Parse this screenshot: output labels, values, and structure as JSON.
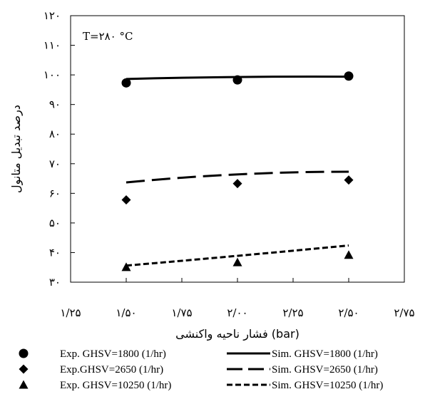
{
  "chart_data": {
    "type": "line",
    "xlabel": "فشار ناحیه واکنشی (bar)",
    "ylabel": "درصد تبدیل متانول",
    "annotation": "T=۲۸۰ °C",
    "xlim": [
      1.25,
      2.75
    ],
    "ylim": [
      30,
      120
    ],
    "x_ticks": [
      1.25,
      1.5,
      1.75,
      2.0,
      2.25,
      2.5,
      2.75
    ],
    "x_tick_labels": [
      "۱/۲۵",
      "۱/۵۰",
      "۱/۷۵",
      "۲/۰۰",
      "۲/۲۵",
      "۲/۵۰",
      "۲/۷۵"
    ],
    "y_ticks": [
      30,
      40,
      50,
      60,
      70,
      80,
      90,
      100,
      110,
      120
    ],
    "y_tick_labels": [
      "۳۰",
      "۴۰",
      "۵۰",
      "۶۰",
      "۷۰",
      "۸۰",
      "۹۰",
      "۱۰۰",
      "۱۱۰",
      "۱۲۰"
    ],
    "grid": false,
    "legend_position": "bottom",
    "series": [
      {
        "name": "Exp. GHSV=1800 (1/hr)",
        "kind": "markers",
        "marker": "circle",
        "x": [
          1.5,
          2.0,
          2.5
        ],
        "y": [
          97.3,
          98.3,
          99.6
        ]
      },
      {
        "name": "Exp.GHSV=2650 (1/hr)",
        "kind": "markers",
        "marker": "diamond",
        "x": [
          1.5,
          2.0,
          2.5
        ],
        "y": [
          57.8,
          63.3,
          64.5
        ]
      },
      {
        "name": "Exp. GHSV=10250 (1/hr)",
        "kind": "markers",
        "marker": "triangle",
        "x": [
          1.5,
          2.0,
          2.5
        ],
        "y": [
          35.1,
          36.7,
          39.2
        ]
      },
      {
        "name": "Sim. GHSV=1800 (1/hr)",
        "kind": "line",
        "dash": "solid",
        "x": [
          1.5,
          2.0,
          2.5
        ],
        "y": [
          98.6,
          99.3,
          99.4
        ]
      },
      {
        "name": "Sim. GHSV=2650 (1/hr)",
        "kind": "line",
        "dash": "long-dash",
        "x": [
          1.5,
          2.0,
          2.5
        ],
        "y": [
          63.7,
          66.4,
          67.3
        ]
      },
      {
        "name": "Sim. GHSV=10250 (1/hr)",
        "kind": "line",
        "dash": "short-dash",
        "x": [
          1.5,
          2.0,
          2.5
        ],
        "y": [
          35.6,
          38.9,
          42.4
        ]
      }
    ],
    "legend": [
      {
        "marker_series": 0,
        "marker_label": "Exp. GHSV=1800 (1/hr)",
        "line_series": 3,
        "line_label": "Sim. GHSV=1800 (1/hr)"
      },
      {
        "marker_series": 1,
        "marker_label": "Exp.GHSV=2650 (1/hr)",
        "line_series": 4,
        "line_label": "Sim. GHSV=2650 (1/hr)"
      },
      {
        "marker_series": 2,
        "marker_label": "Exp. GHSV=10250 (1/hr)",
        "line_series": 5,
        "line_label": "Sim. GHSV=10250 (1/hr)"
      }
    ]
  }
}
